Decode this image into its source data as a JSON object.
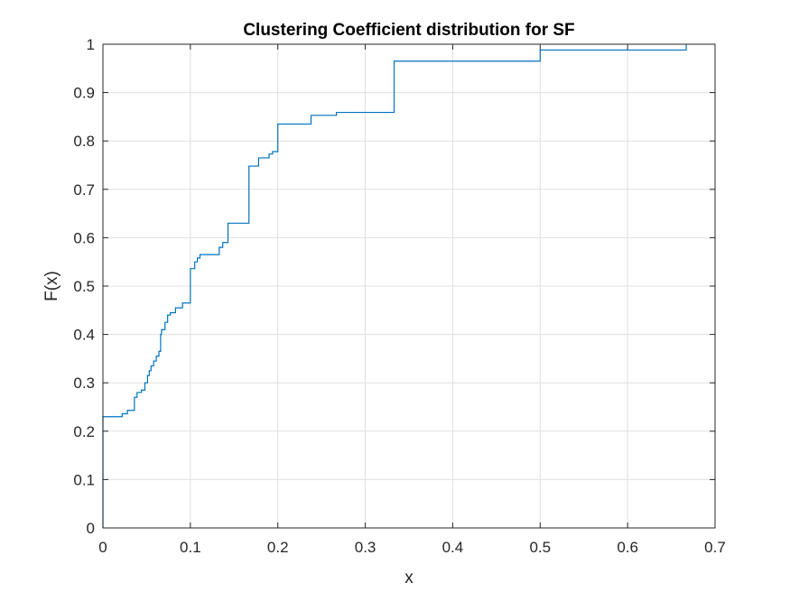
{
  "chart_data": {
    "type": "line",
    "title": "Clustering Coefficient distribution for SF",
    "xlabel": "x",
    "ylabel": "F(x)",
    "xlim": [
      0,
      0.7
    ],
    "ylim": [
      0,
      1
    ],
    "xticks": [
      0,
      0.1,
      0.2,
      0.3,
      0.4,
      0.5,
      0.6,
      0.7
    ],
    "xtick_labels": [
      "0",
      "0.1",
      "0.2",
      "0.3",
      "0.4",
      "0.5",
      "0.6",
      "0.7"
    ],
    "yticks": [
      0,
      0.1,
      0.2,
      0.3,
      0.4,
      0.5,
      0.6,
      0.7,
      0.8,
      0.9,
      1
    ],
    "ytick_labels": [
      "0",
      "0.1",
      "0.2",
      "0.3",
      "0.4",
      "0.5",
      "0.6",
      "0.7",
      "0.8",
      "0.9",
      "1"
    ],
    "grid": true,
    "line_color": "#0072bd",
    "series": [
      {
        "step": "post",
        "points": [
          [
            0,
            0
          ],
          [
            0,
            0.23
          ],
          [
            0.022,
            0.23
          ],
          [
            0.022,
            0.236
          ],
          [
            0.028,
            0.236
          ],
          [
            0.028,
            0.243
          ],
          [
            0.036,
            0.243
          ],
          [
            0.036,
            0.27
          ],
          [
            0.039,
            0.27
          ],
          [
            0.039,
            0.28
          ],
          [
            0.044,
            0.28
          ],
          [
            0.044,
            0.285
          ],
          [
            0.048,
            0.285
          ],
          [
            0.048,
            0.3
          ],
          [
            0.051,
            0.3
          ],
          [
            0.051,
            0.315
          ],
          [
            0.053,
            0.315
          ],
          [
            0.053,
            0.325
          ],
          [
            0.055,
            0.325
          ],
          [
            0.055,
            0.335
          ],
          [
            0.058,
            0.335
          ],
          [
            0.058,
            0.345
          ],
          [
            0.061,
            0.345
          ],
          [
            0.061,
            0.355
          ],
          [
            0.064,
            0.355
          ],
          [
            0.064,
            0.365
          ],
          [
            0.066,
            0.365
          ],
          [
            0.066,
            0.4
          ],
          [
            0.067,
            0.4
          ],
          [
            0.067,
            0.41
          ],
          [
            0.071,
            0.41
          ],
          [
            0.071,
            0.425
          ],
          [
            0.074,
            0.425
          ],
          [
            0.074,
            0.44
          ],
          [
            0.077,
            0.44
          ],
          [
            0.077,
            0.445
          ],
          [
            0.083,
            0.445
          ],
          [
            0.083,
            0.455
          ],
          [
            0.091,
            0.455
          ],
          [
            0.091,
            0.465
          ],
          [
            0.1,
            0.465
          ],
          [
            0.1,
            0.536
          ],
          [
            0.105,
            0.536
          ],
          [
            0.105,
            0.55
          ],
          [
            0.108,
            0.55
          ],
          [
            0.108,
            0.558
          ],
          [
            0.111,
            0.558
          ],
          [
            0.111,
            0.565
          ],
          [
            0.133,
            0.565
          ],
          [
            0.133,
            0.58
          ],
          [
            0.137,
            0.58
          ],
          [
            0.137,
            0.59
          ],
          [
            0.143,
            0.59
          ],
          [
            0.143,
            0.63
          ],
          [
            0.167,
            0.63
          ],
          [
            0.167,
            0.748
          ],
          [
            0.178,
            0.748
          ],
          [
            0.178,
            0.765
          ],
          [
            0.19,
            0.765
          ],
          [
            0.19,
            0.773
          ],
          [
            0.194,
            0.773
          ],
          [
            0.194,
            0.778
          ],
          [
            0.2,
            0.778
          ],
          [
            0.2,
            0.835
          ],
          [
            0.238,
            0.835
          ],
          [
            0.238,
            0.853
          ],
          [
            0.267,
            0.853
          ],
          [
            0.267,
            0.859
          ],
          [
            0.333,
            0.859
          ],
          [
            0.333,
            0.965
          ],
          [
            0.5,
            0.965
          ],
          [
            0.5,
            0.988
          ],
          [
            0.667,
            0.988
          ],
          [
            0.667,
            1.0
          ]
        ]
      }
    ]
  }
}
